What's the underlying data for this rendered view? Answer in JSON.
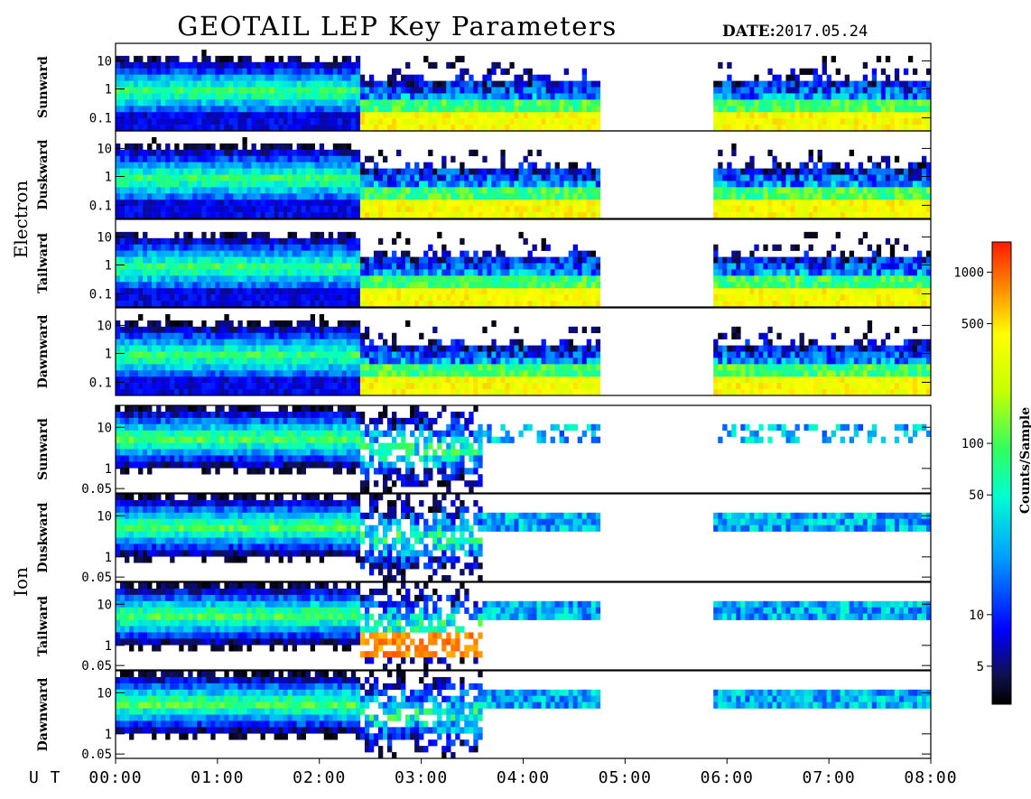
{
  "header": {
    "title": "GEOTAIL LEP Key Parameters",
    "date_label": "DATE:",
    "date_value": "2017.05.24"
  },
  "chart_data": {
    "type": "heatmap",
    "x_axis_label": "U T",
    "x_ticks": [
      "00:00",
      "01:00",
      "02:00",
      "03:00",
      "04:00",
      "05:00",
      "06:00",
      "07:00",
      "08:00"
    ],
    "xlim_hours": [
      0,
      8
    ],
    "data_gaps_hours": [
      [
        4.75,
        5.85
      ]
    ],
    "groups": [
      {
        "species": "Electron",
        "y_ticks": [
          "10",
          "1",
          "0.1"
        ],
        "panels": [
          {
            "direction": "Sunward"
          },
          {
            "direction": "Duskward"
          },
          {
            "direction": "Tailward"
          },
          {
            "direction": "Dawnward"
          }
        ]
      },
      {
        "species": "Ion",
        "y_ticks": [
          "10",
          "1",
          "0.05"
        ],
        "panels": [
          {
            "direction": "Sunward"
          },
          {
            "direction": "Duskward"
          },
          {
            "direction": "Tailward"
          },
          {
            "direction": "Dawnward"
          }
        ]
      }
    ],
    "colorbar": {
      "label": "Counts/Sample",
      "scale": "log",
      "range": [
        3,
        1500
      ],
      "ticks": [
        1000,
        500,
        100,
        50,
        10,
        5
      ],
      "tick_labels": [
        "1000",
        "500",
        "100",
        "50",
        "10",
        "5"
      ]
    }
  }
}
